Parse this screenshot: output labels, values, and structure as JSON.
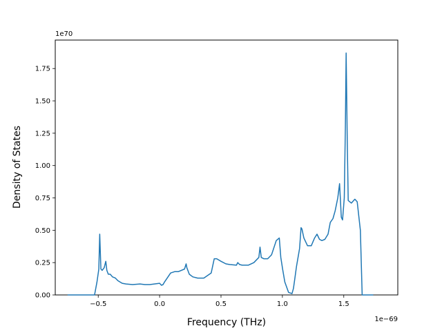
{
  "chart_data": {
    "type": "line",
    "title": "",
    "xlabel": "Frequency (THz)",
    "ylabel": "Density of States",
    "x_offset_text": "1e−69",
    "y_offset_text": "1e70",
    "xlim": [
      -0.85,
      1.94
    ],
    "ylim": [
      0.0,
      1.97
    ],
    "x_ticks": [
      -0.5,
      0.0,
      0.5,
      1.0,
      1.5
    ],
    "x_tick_labels": [
      "−0.5",
      "0.0",
      "0.5",
      "1.0",
      "1.5"
    ],
    "y_ticks": [
      0.0,
      0.25,
      0.5,
      0.75,
      1.0,
      1.25,
      1.5,
      1.75
    ],
    "y_tick_labels": [
      "0.00",
      "0.25",
      "0.50",
      "0.75",
      "1.00",
      "1.25",
      "1.50",
      "1.75"
    ],
    "grid": false,
    "legend": "none",
    "colors": {
      "line": "#1f77b4"
    },
    "series": [
      {
        "x": [
          -0.75,
          -0.53,
          -0.51,
          -0.495,
          -0.488,
          -0.478,
          -0.468,
          -0.452,
          -0.438,
          -0.43,
          -0.418,
          -0.402,
          -0.384,
          -0.36,
          -0.34,
          -0.305,
          -0.274,
          -0.22,
          -0.16,
          -0.12,
          -0.08,
          0.0,
          0.015,
          0.028,
          0.04,
          0.09,
          0.122,
          0.152,
          0.203,
          0.216,
          0.222,
          0.242,
          0.27,
          0.31,
          0.36,
          0.42,
          0.445,
          0.465,
          0.5,
          0.54,
          0.572,
          0.626,
          0.636,
          0.652,
          0.672,
          0.722,
          0.768,
          0.808,
          0.818,
          0.828,
          0.848,
          0.88,
          0.912,
          0.95,
          0.975,
          0.987,
          1.002,
          1.02,
          1.05,
          1.078,
          1.09,
          1.102,
          1.115,
          1.14,
          1.152,
          1.159,
          1.175,
          1.205,
          1.235,
          1.262,
          1.282,
          1.302,
          1.322,
          1.346,
          1.372,
          1.39,
          1.412,
          1.43,
          1.451,
          1.466,
          1.48,
          1.49,
          1.504,
          1.513,
          1.519,
          1.528,
          1.536,
          1.562,
          1.59,
          1.609,
          1.635,
          1.65,
          1.74
        ],
        "y": [
          0.0,
          0.0,
          0.1,
          0.2,
          0.47,
          0.2,
          0.19,
          0.21,
          0.26,
          0.19,
          0.16,
          0.16,
          0.14,
          0.13,
          0.11,
          0.09,
          0.085,
          0.08,
          0.085,
          0.08,
          0.08,
          0.09,
          0.075,
          0.08,
          0.1,
          0.17,
          0.18,
          0.18,
          0.2,
          0.24,
          0.21,
          0.16,
          0.14,
          0.13,
          0.13,
          0.17,
          0.28,
          0.28,
          0.26,
          0.24,
          0.235,
          0.23,
          0.25,
          0.235,
          0.23,
          0.23,
          0.25,
          0.29,
          0.37,
          0.29,
          0.28,
          0.28,
          0.31,
          0.42,
          0.44,
          0.29,
          0.2,
          0.1,
          0.02,
          0.01,
          0.05,
          0.13,
          0.22,
          0.36,
          0.52,
          0.51,
          0.44,
          0.38,
          0.38,
          0.44,
          0.47,
          0.43,
          0.42,
          0.43,
          0.47,
          0.56,
          0.59,
          0.65,
          0.75,
          0.86,
          0.6,
          0.58,
          0.75,
          1.3,
          1.87,
          1.2,
          0.73,
          0.71,
          0.74,
          0.72,
          0.5,
          0.0,
          0.0
        ]
      }
    ]
  }
}
